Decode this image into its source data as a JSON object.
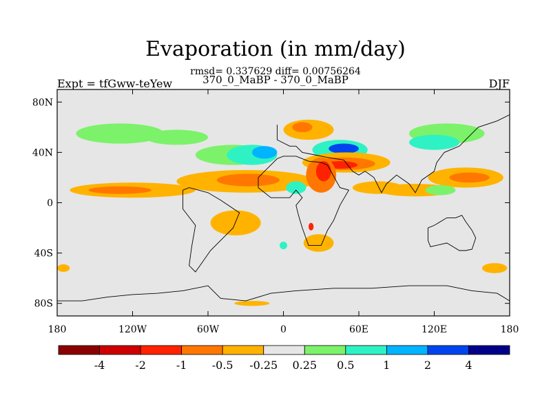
{
  "header": {
    "title": "Evaporation (in mm/day)",
    "stats": "rmsd= 0.337629 diff= 0.00756264",
    "experiment_pair": "370_0_MaBP - 370_0_MaBP",
    "left_label": "Expt = tfGww-teYew",
    "right_label": "DJF"
  },
  "chart_data": {
    "type": "heatmap",
    "title": "Evaporation (in mm/day)",
    "xlabel": "",
    "ylabel": "",
    "xlim": [
      -180,
      180
    ],
    "ylim": [
      -90,
      90
    ],
    "x_ticks": [
      {
        "value": -180,
        "label": "180"
      },
      {
        "value": -120,
        "label": "120W"
      },
      {
        "value": -60,
        "label": "60W"
      },
      {
        "value": 0,
        "label": "0"
      },
      {
        "value": 60,
        "label": "60E"
      },
      {
        "value": 120,
        "label": "120E"
      },
      {
        "value": 180,
        "label": "180"
      }
    ],
    "y_ticks": [
      {
        "value": 80,
        "label": "80N"
      },
      {
        "value": 40,
        "label": "40N"
      },
      {
        "value": 0,
        "label": "0"
      },
      {
        "value": -40,
        "label": "40S"
      },
      {
        "value": -80,
        "label": "80S"
      }
    ],
    "background_color": "#e6e6e6",
    "colorbar": {
      "levels": [
        "",
        "-4",
        "",
        "-2",
        "",
        "-1",
        "",
        "-0.5",
        "",
        "-0.25",
        "",
        "0.25",
        "",
        "0.5",
        "",
        "1",
        "",
        "2",
        "",
        "4",
        ""
      ],
      "colors": [
        "#8b0000",
        "#cc0000",
        "#ff2200",
        "#ff7700",
        "#ffb300",
        "#e6e6e6",
        "#7cf26a",
        "#2ef2c4",
        "#00b4ff",
        "#0044ee",
        "#000088"
      ]
    },
    "anomaly_regions": [
      {
        "lon": -120,
        "lat": 10,
        "rlon": 50,
        "rlat": 6,
        "color": "#ffb300"
      },
      {
        "lon": -130,
        "lat": 10,
        "rlon": 25,
        "rlat": 3,
        "color": "#ff7700"
      },
      {
        "lon": -30,
        "lat": 17,
        "rlon": 55,
        "rlat": 9,
        "color": "#ffb300"
      },
      {
        "lon": -28,
        "lat": 18,
        "rlon": 25,
        "rlat": 5,
        "color": "#ff7700"
      },
      {
        "lon": -40,
        "lat": 38,
        "rlon": 30,
        "rlat": 8,
        "color": "#7cf26a"
      },
      {
        "lon": -25,
        "lat": 38,
        "rlon": 20,
        "rlat": 8,
        "color": "#2ef2c4"
      },
      {
        "lon": -15,
        "lat": 40,
        "rlon": 10,
        "rlat": 5,
        "color": "#00b4ff"
      },
      {
        "lon": -130,
        "lat": 55,
        "rlon": 35,
        "rlat": 8,
        "color": "#7cf26a"
      },
      {
        "lon": -85,
        "lat": 52,
        "rlon": 25,
        "rlat": 6,
        "color": "#7cf26a"
      },
      {
        "lon": 20,
        "lat": 58,
        "rlon": 20,
        "rlat": 8,
        "color": "#ffb300"
      },
      {
        "lon": 15,
        "lat": 60,
        "rlon": 8,
        "rlat": 4,
        "color": "#ff7700"
      },
      {
        "lon": 45,
        "lat": 42,
        "rlon": 22,
        "rlat": 8,
        "color": "#2ef2c4"
      },
      {
        "lon": 48,
        "lat": 43,
        "rlon": 12,
        "rlat": 4,
        "color": "#0044ee"
      },
      {
        "lon": 50,
        "lat": 32,
        "rlon": 35,
        "rlat": 8,
        "color": "#ffb300"
      },
      {
        "lon": 48,
        "lat": 31,
        "rlon": 25,
        "rlat": 5,
        "color": "#ff7700"
      },
      {
        "lon": 45,
        "lat": 30,
        "rlon": 14,
        "rlat": 3,
        "color": "#ff2200"
      },
      {
        "lon": 30,
        "lat": 22,
        "rlon": 12,
        "rlat": 14,
        "color": "#ff7700"
      },
      {
        "lon": 32,
        "lat": 25,
        "rlon": 6,
        "rlat": 8,
        "color": "#ff2200"
      },
      {
        "lon": 10,
        "lat": 12,
        "rlon": 8,
        "rlat": 5,
        "color": "#2ef2c4"
      },
      {
        "lon": 75,
        "lat": 12,
        "rlon": 20,
        "rlat": 5,
        "color": "#ffb300"
      },
      {
        "lon": 130,
        "lat": 55,
        "rlon": 30,
        "rlat": 8,
        "color": "#7cf26a"
      },
      {
        "lon": 120,
        "lat": 48,
        "rlon": 20,
        "rlat": 6,
        "color": "#2ef2c4"
      },
      {
        "lon": 145,
        "lat": 20,
        "rlon": 30,
        "rlat": 8,
        "color": "#ffb300"
      },
      {
        "lon": 148,
        "lat": 20,
        "rlon": 16,
        "rlat": 4,
        "color": "#ff7700"
      },
      {
        "lon": 105,
        "lat": 10,
        "rlon": 30,
        "rlat": 5,
        "color": "#ffb300"
      },
      {
        "lon": 125,
        "lat": 10,
        "rlon": 12,
        "rlat": 4,
        "color": "#7cf26a"
      },
      {
        "lon": -38,
        "lat": -16,
        "rlon": 20,
        "rlat": 10,
        "color": "#ffb300"
      },
      {
        "lon": 28,
        "lat": -32,
        "rlon": 12,
        "rlat": 7,
        "color": "#ffb300"
      },
      {
        "lon": 0,
        "lat": -34,
        "rlon": 3,
        "rlat": 3,
        "color": "#2ef2c4"
      },
      {
        "lon": 22,
        "lat": -19,
        "rlon": 2,
        "rlat": 3,
        "color": "#ff2200"
      },
      {
        "lon": 168,
        "lat": -52,
        "rlon": 10,
        "rlat": 4,
        "color": "#ffb300"
      },
      {
        "lon": -175,
        "lat": -52,
        "rlon": 5,
        "rlat": 3,
        "color": "#ffb300"
      },
      {
        "lon": -25,
        "lat": -80,
        "rlon": 14,
        "rlat": 2,
        "color": "#ffb300"
      }
    ],
    "continent_outlines": [
      [
        [
          -20,
          20
        ],
        [
          -20,
          12
        ],
        [
          -10,
          4
        ],
        [
          -5,
          4
        ],
        [
          5,
          4
        ],
        [
          10,
          10
        ],
        [
          15,
          4
        ],
        [
          10,
          -2
        ],
        [
          12,
          -10
        ],
        [
          15,
          -20
        ],
        [
          20,
          -34
        ],
        [
          30,
          -34
        ],
        [
          35,
          -22
        ],
        [
          40,
          -14
        ],
        [
          45,
          -2
        ],
        [
          52,
          10
        ],
        [
          45,
          12
        ],
        [
          35,
          30
        ],
        [
          30,
          32
        ],
        [
          20,
          33
        ],
        [
          10,
          37
        ],
        [
          0,
          37
        ],
        [
          -5,
          35
        ],
        [
          -12,
          28
        ],
        [
          -20,
          20
        ]
      ],
      [
        [
          -80,
          10
        ],
        [
          -75,
          12
        ],
        [
          -60,
          8
        ],
        [
          -50,
          2
        ],
        [
          -35,
          -8
        ],
        [
          -40,
          -20
        ],
        [
          -48,
          -28
        ],
        [
          -58,
          -38
        ],
        [
          -65,
          -48
        ],
        [
          -70,
          -55
        ],
        [
          -75,
          -50
        ],
        [
          -73,
          -35
        ],
        [
          -70,
          -18
        ],
        [
          -80,
          -5
        ],
        [
          -80,
          10
        ]
      ],
      [
        [
          -5,
          62
        ],
        [
          -5,
          50
        ],
        [
          5,
          45
        ],
        [
          10,
          45
        ],
        [
          15,
          40
        ],
        [
          25,
          38
        ],
        [
          35,
          36
        ],
        [
          48,
          34
        ],
        [
          55,
          25
        ],
        [
          60,
          22
        ],
        [
          65,
          25
        ],
        [
          72,
          20
        ],
        [
          78,
          8
        ],
        [
          82,
          15
        ],
        [
          90,
          22
        ],
        [
          100,
          15
        ],
        [
          105,
          8
        ],
        [
          110,
          18
        ],
        [
          120,
          25
        ],
        [
          122,
          32
        ],
        [
          128,
          40
        ],
        [
          140,
          45
        ],
        [
          145,
          50
        ],
        [
          155,
          60
        ],
        [
          170,
          65
        ],
        [
          180,
          70
        ],
        [
          180,
          90
        ],
        [
          -5,
          90
        ]
      ],
      [
        [
          115,
          -20
        ],
        [
          120,
          -18
        ],
        [
          130,
          -12
        ],
        [
          137,
          -12
        ],
        [
          142,
          -10
        ],
        [
          145,
          -15
        ],
        [
          150,
          -22
        ],
        [
          153,
          -28
        ],
        [
          150,
          -37
        ],
        [
          145,
          -38
        ],
        [
          140,
          -38
        ],
        [
          135,
          -35
        ],
        [
          130,
          -32
        ],
        [
          117,
          -35
        ],
        [
          115,
          -30
        ],
        [
          115,
          -20
        ]
      ],
      [
        [
          -180,
          -78
        ],
        [
          -160,
          -78
        ],
        [
          -140,
          -75
        ],
        [
          -120,
          -73
        ],
        [
          -100,
          -72
        ],
        [
          -80,
          -70
        ],
        [
          -60,
          -66
        ],
        [
          -50,
          -76
        ],
        [
          -30,
          -78
        ],
        [
          -10,
          -72
        ],
        [
          10,
          -70
        ],
        [
          40,
          -68
        ],
        [
          70,
          -68
        ],
        [
          100,
          -66
        ],
        [
          130,
          -66
        ],
        [
          150,
          -70
        ],
        [
          170,
          -72
        ],
        [
          180,
          -78
        ],
        [
          180,
          -90
        ],
        [
          -180,
          -90
        ],
        [
          -180,
          -78
        ]
      ]
    ]
  }
}
